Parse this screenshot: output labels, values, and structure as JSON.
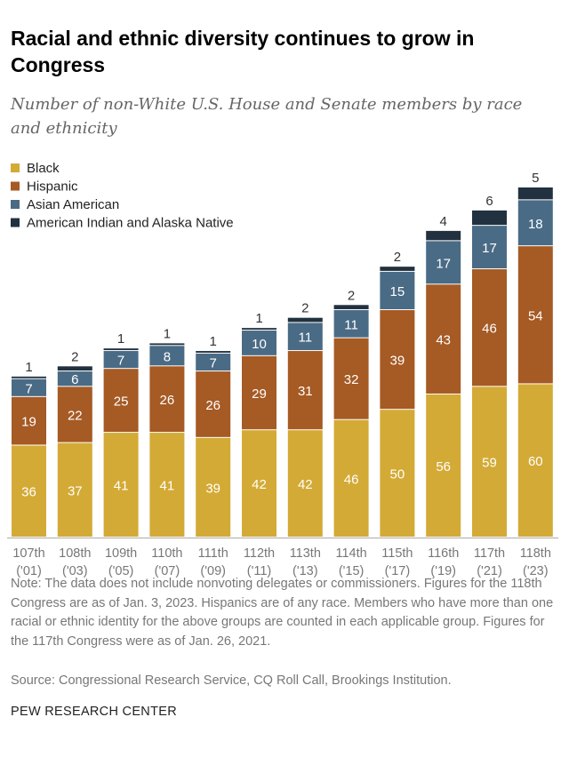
{
  "title": "Racial and ethnic diversity continues to grow in Congress",
  "subtitle": "Number of non-White U.S. House and Senate members by race and ethnicity",
  "note": "Note: The data does not include nonvoting delegates or commissioners. Figures for the 118th Congress are as of Jan. 3, 2023. Hispanics are of any race. Members who have more than one racial or ethnic identity for the above groups are counted in each applicable group. Figures for the 117th Congress were as of Jan. 26, 2021.",
  "source": "Source: Congressional Research Service, CQ Roll Call, Brookings Institution.",
  "brand": "PEW RESEARCH CENTER",
  "chart_data": {
    "type": "bar",
    "stacked": true,
    "categories": [
      "107th",
      "108th",
      "109th",
      "110th",
      "111th",
      "112th",
      "113th",
      "114th",
      "115th",
      "116th",
      "117th",
      "118th"
    ],
    "category_years": [
      "('01)",
      "('03)",
      "('05)",
      "('07)",
      "('09)",
      "('11)",
      "('13)",
      "('15)",
      "('17)",
      "('19)",
      "('21)",
      "('23)"
    ],
    "legend_placement": "top-left",
    "grid": false,
    "series": [
      {
        "name": "Black",
        "color": "#d3aa35",
        "label_color": "#ffffff",
        "values": [
          36,
          37,
          41,
          41,
          39,
          42,
          42,
          46,
          50,
          56,
          59,
          60
        ]
      },
      {
        "name": "Hispanic",
        "color": "#a65a24",
        "label_color": "#ffffff",
        "values": [
          19,
          22,
          25,
          26,
          26,
          29,
          31,
          32,
          39,
          43,
          46,
          54
        ]
      },
      {
        "name": "Asian American",
        "color": "#4a6b85",
        "label_color": "#ffffff",
        "values": [
          7,
          6,
          7,
          8,
          7,
          10,
          11,
          11,
          15,
          17,
          17,
          18
        ]
      },
      {
        "name": "American Indian and Alaska Native",
        "color": "#22313f",
        "label_color": "#333333",
        "values": [
          1,
          2,
          1,
          1,
          1,
          1,
          2,
          2,
          2,
          4,
          6,
          5
        ]
      }
    ]
  }
}
